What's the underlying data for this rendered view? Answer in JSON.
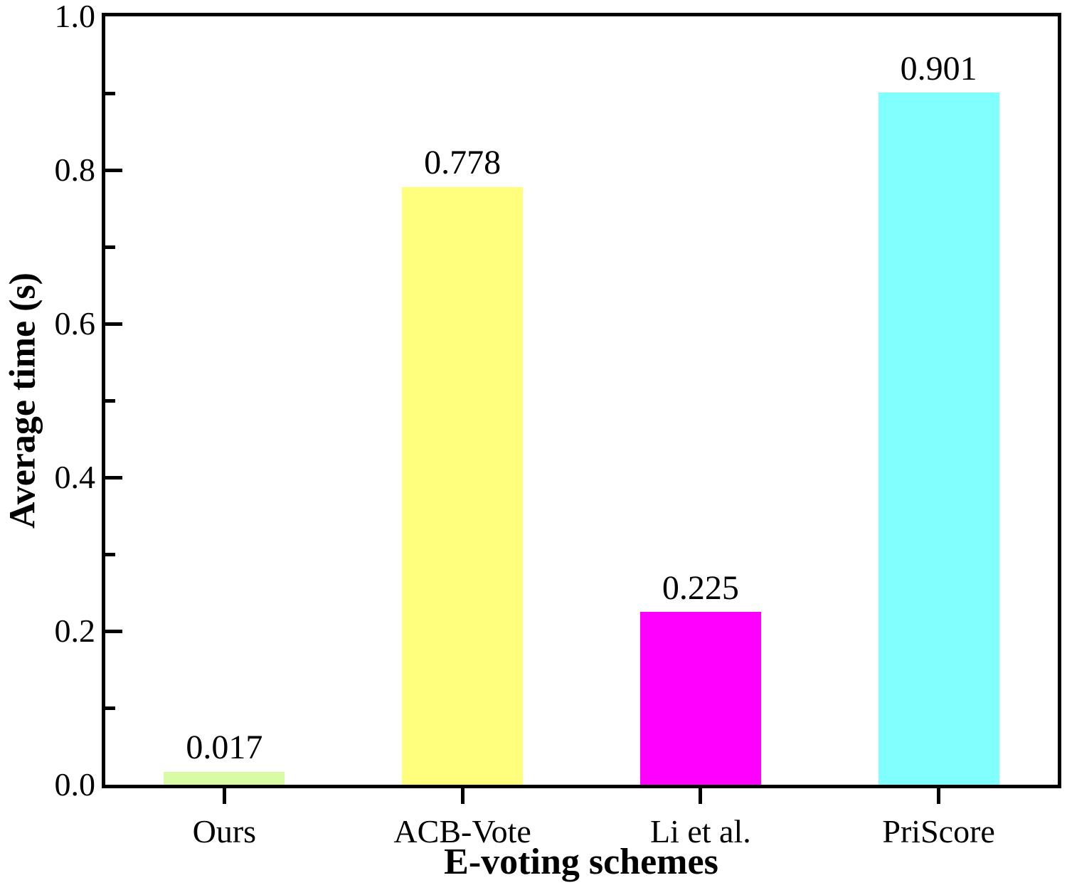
{
  "chart_data": {
    "type": "bar",
    "categories": [
      "Ours",
      "ACB-Vote",
      "Li et al.",
      "PriScore"
    ],
    "values": [
      0.017,
      0.778,
      0.225,
      0.901
    ],
    "value_labels": [
      "0.017",
      "0.778",
      "0.225",
      "0.901"
    ],
    "bar_colors": [
      "#d9fba3",
      "#fffe7d",
      "#ff00ff",
      "#80fffe"
    ],
    "xlabel": "E-voting schemes",
    "ylabel": "Average time (s)",
    "ylim": [
      0.0,
      1.0
    ],
    "ytick_values": [
      0.0,
      0.2,
      0.4,
      0.6,
      0.8,
      1.0
    ],
    "ytick_labels": [
      "0.0",
      "0.2",
      "0.4",
      "0.6",
      "0.8",
      "1.0"
    ],
    "minor_tick_step": 0.1,
    "grid": false,
    "legend": "none",
    "axis_color": "#000000",
    "background_color": "#ffffff"
  }
}
